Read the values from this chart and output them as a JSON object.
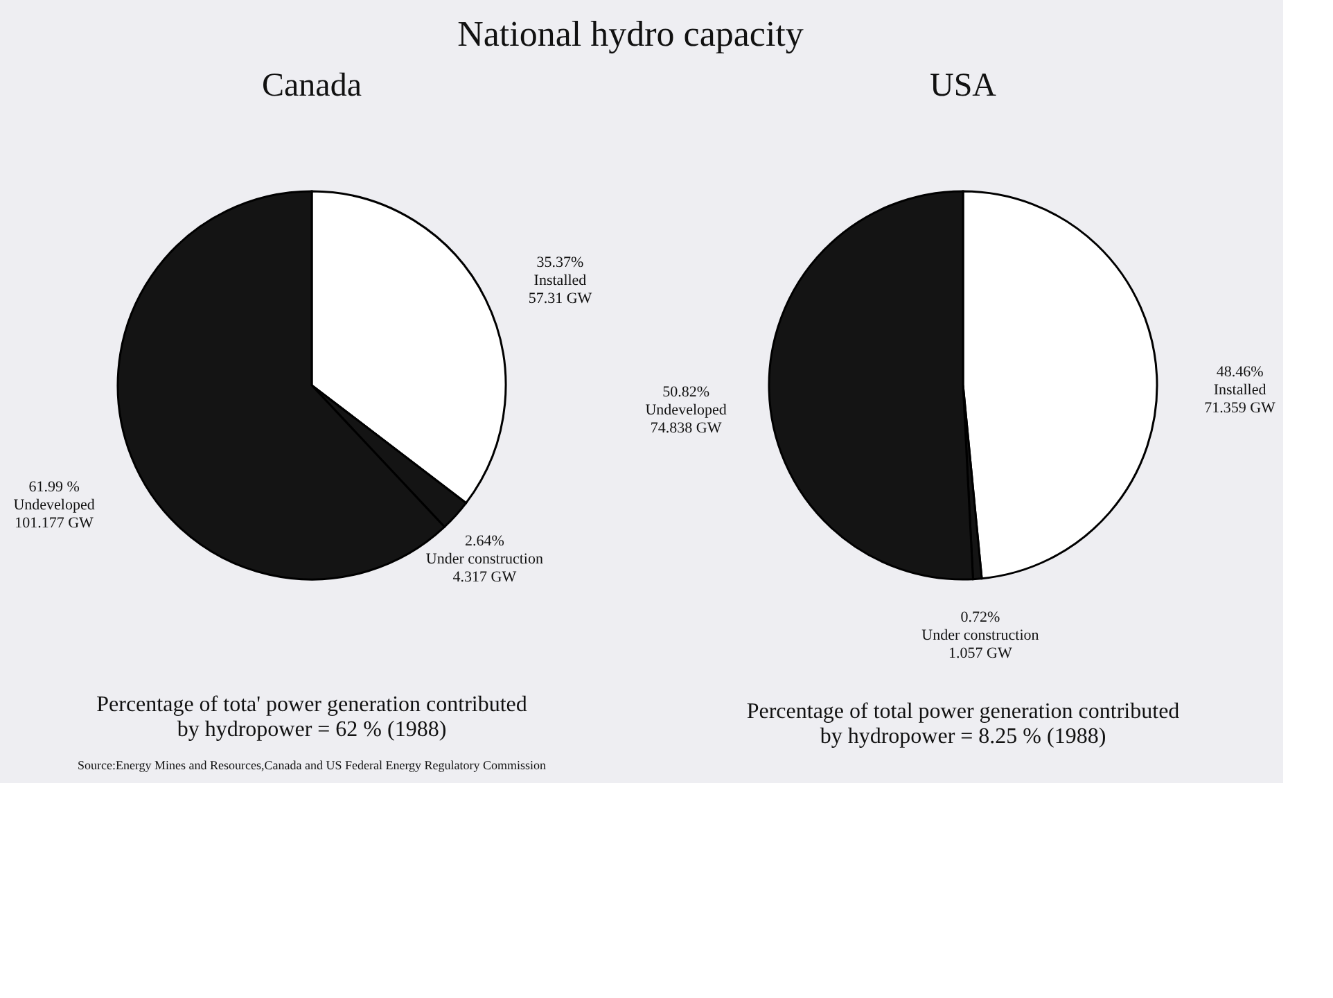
{
  "chart_data": [
    {
      "type": "pie",
      "title": "Canada",
      "categories": [
        "Installed",
        "Under construction",
        "Undeveloped"
      ],
      "values": [
        35.37,
        2.64,
        61.99
      ],
      "colors": [
        "#ffffff",
        "#141414",
        "#141414"
      ],
      "value_labels": [
        "35.37%\n57.31 GW",
        "2.64%\n4.317 GW",
        "61.99 %\n101.177 GW"
      ],
      "annotations": [
        "National hydro capacity",
        "Percentage of tota' power generation contributed\nby hydropower = 62 % (1988)"
      ]
    },
    {
      "type": "pie",
      "title": "USA",
      "categories": [
        "Installed",
        "Under construction",
        "Undeveloped"
      ],
      "values": [
        48.46,
        0.72,
        50.82
      ],
      "colors": [
        "#ffffff",
        "#141414",
        "#141414"
      ],
      "value_labels": [
        "48.46%\n71.359 GW",
        "0.72%\n1.057 GW",
        "50.82%\n74.838 GW"
      ],
      "annotations": [
        "Percentage of total power generation contributed\nby hydropower = 8.25 % (1988)",
        "Source:Energy Mines and Resources,Canada and US Federal Energy Regulatory Commission"
      ]
    }
  ]
}
